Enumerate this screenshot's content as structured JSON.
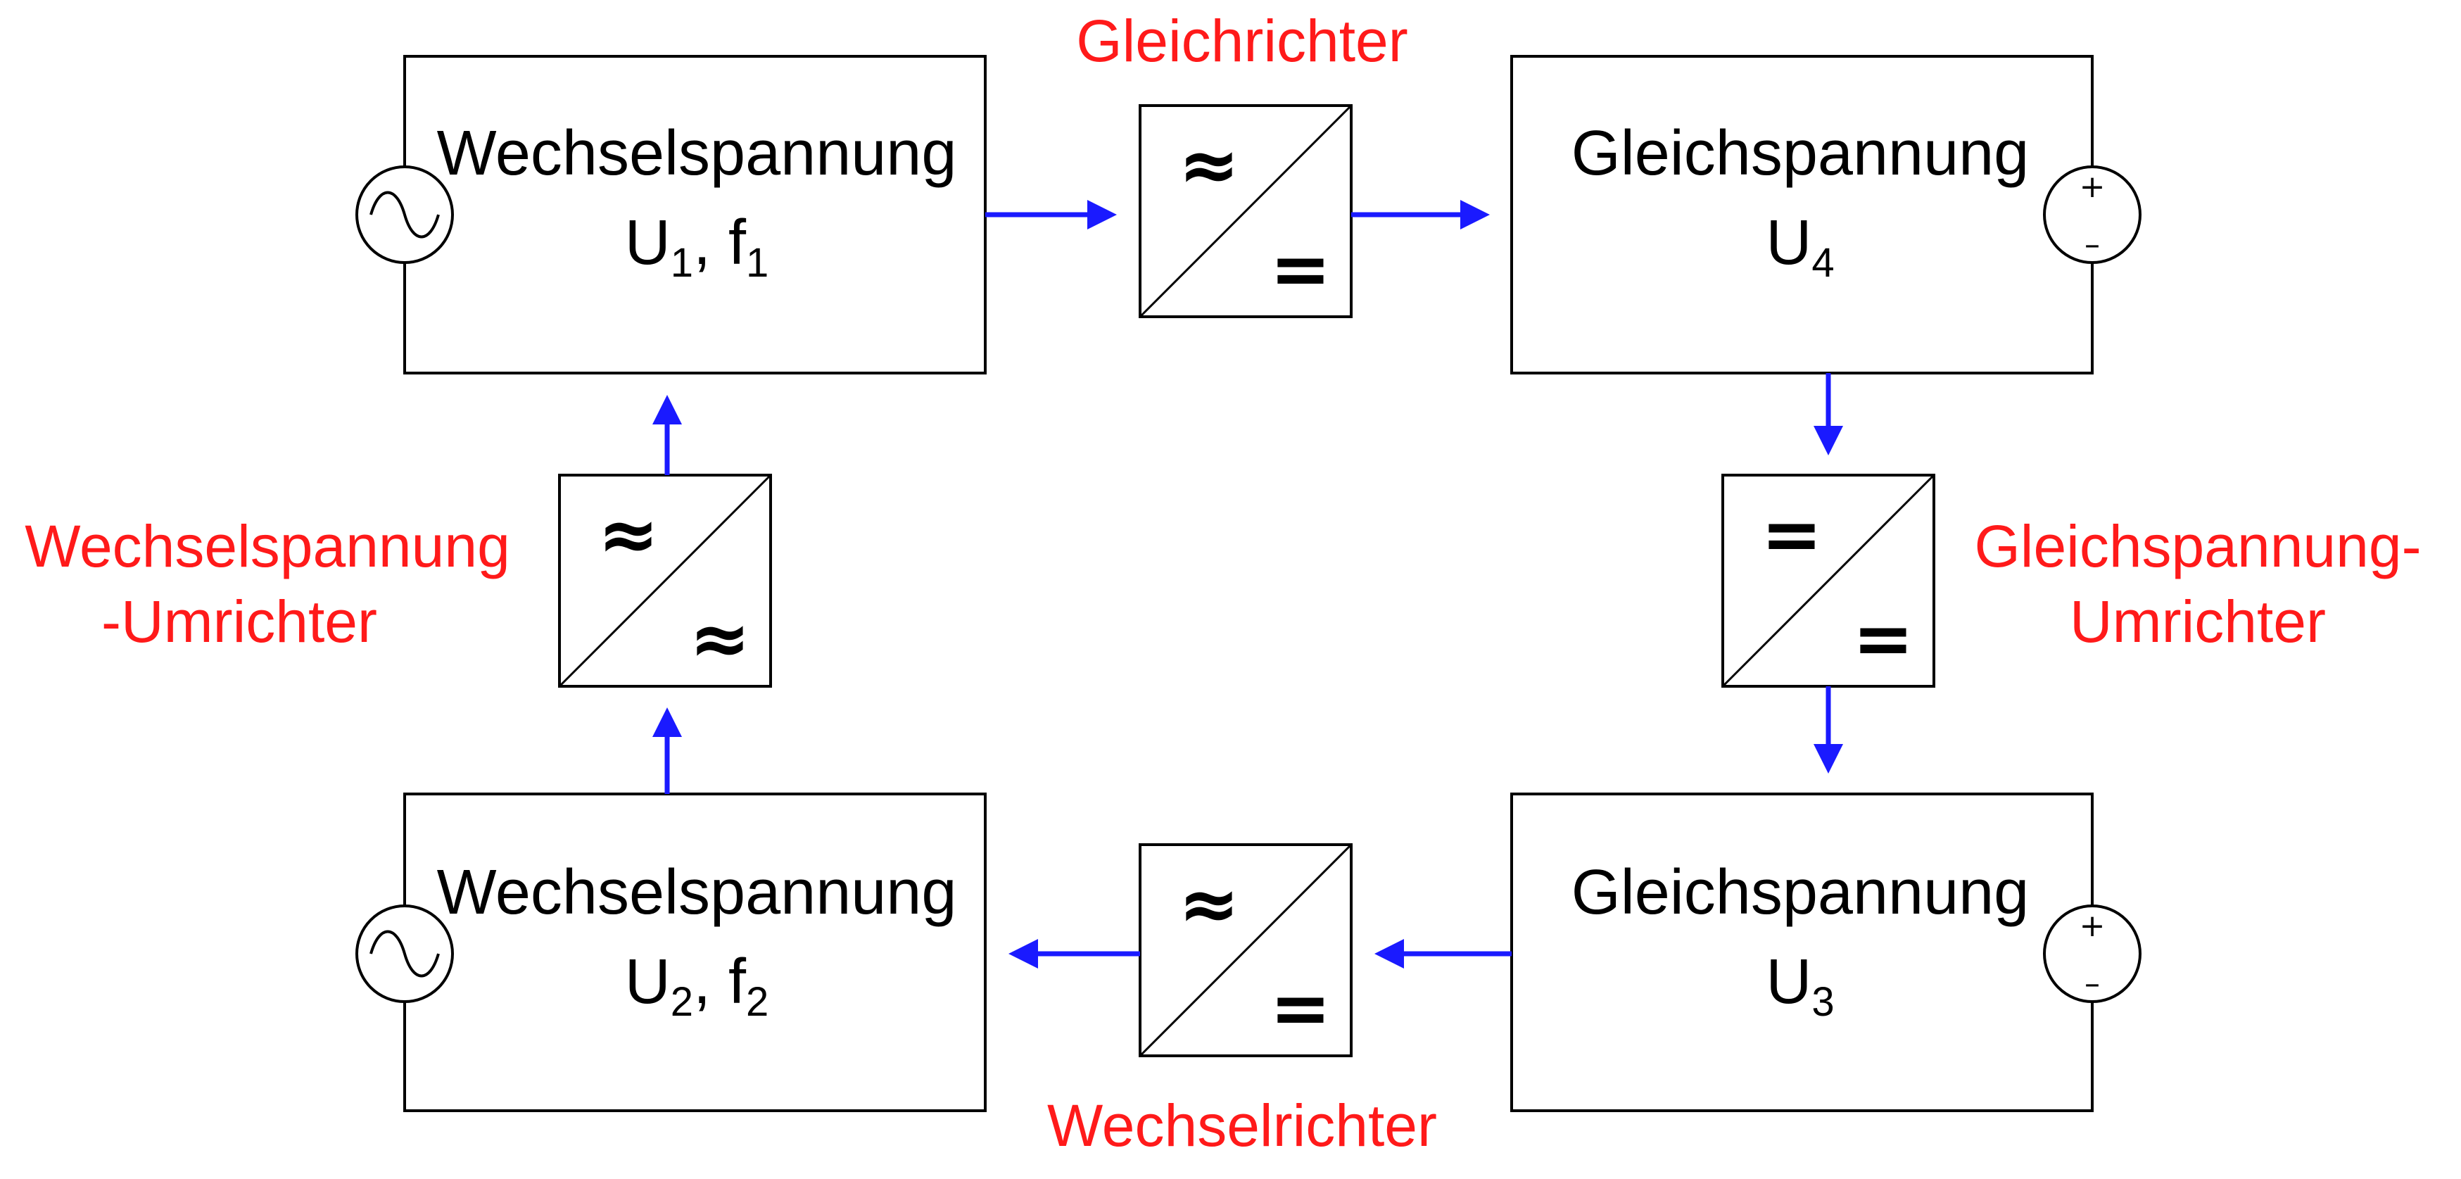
{
  "colors": {
    "arrow": "#1a1aff",
    "label": "#ff1a1a",
    "line": "#000000",
    "background": "#ffffff"
  },
  "boxes": {
    "ac1": {
      "title": "Wechselspannung",
      "sub_prefix": "U",
      "sub_index": "1",
      "sub_sep": ", f",
      "sub_index2": "1",
      "icon": "ac-source-icon"
    },
    "dc4": {
      "title": "Gleichspannung",
      "sub_prefix": "U",
      "sub_index": "4",
      "icon": "dc-source-icon"
    },
    "ac2": {
      "title": "Wechselspannung",
      "sub_prefix": "U",
      "sub_index": "2",
      "sub_sep": ", f",
      "sub_index2": "2",
      "icon": "ac-source-icon"
    },
    "dc3": {
      "title": "Gleichspannung",
      "sub_prefix": "U",
      "sub_index": "3",
      "icon": "dc-source-icon"
    }
  },
  "converters": {
    "rectifier": {
      "label": "Gleichrichter",
      "in_symbol": "≈",
      "out_symbol": "="
    },
    "inverter": {
      "label": "Wechselrichter",
      "in_symbol": "≈",
      "out_symbol": "="
    },
    "ac_converter": {
      "label_line1": "Wechselspannung",
      "label_line2": "-Umrichter",
      "in_symbol": "≈",
      "out_symbol": "≈"
    },
    "dc_converter": {
      "label_line1": "Gleichspannung-",
      "label_line2": "Umrichter",
      "in_symbol": "=",
      "out_symbol": "="
    }
  },
  "dc_source": {
    "plus": "+",
    "minus": "–"
  }
}
